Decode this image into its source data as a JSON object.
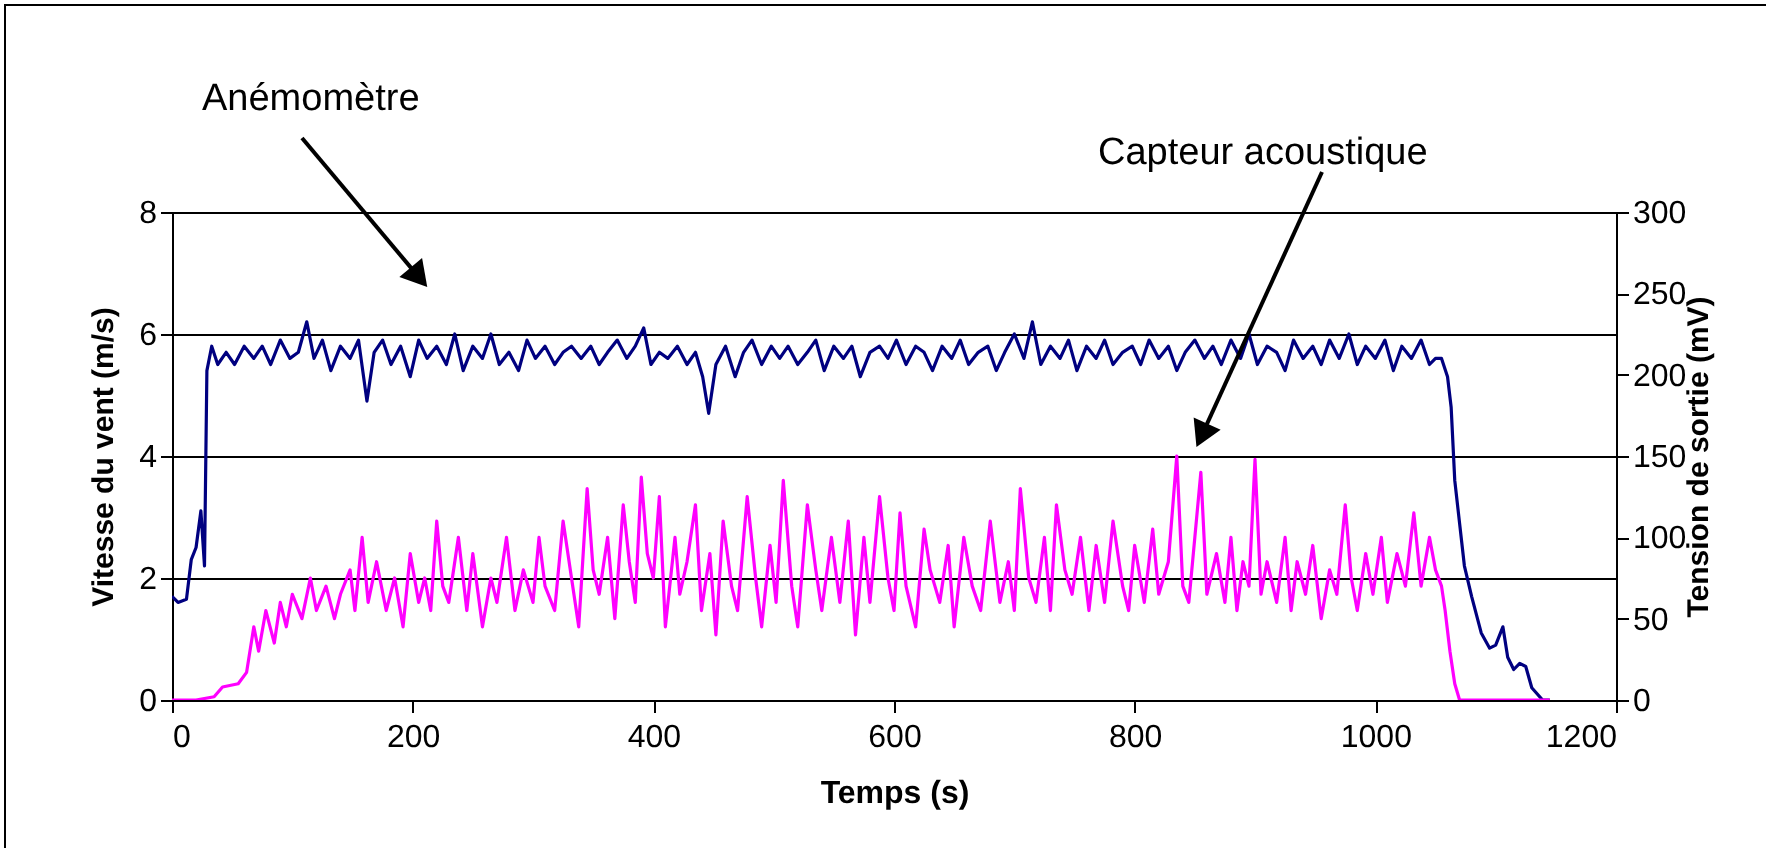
{
  "chart_data": {
    "type": "line",
    "xlabel": "Temps (s)",
    "ylabel": "Vitesse du vent (m/s)",
    "y2label": "Tension de sortie (mV)",
    "xlim": [
      0,
      1200
    ],
    "xticks": [
      0,
      200,
      400,
      600,
      800,
      1000,
      1200
    ],
    "ylim": [
      0,
      8
    ],
    "yticks": [
      0,
      2,
      4,
      6,
      8
    ],
    "y2lim": [
      0,
      300
    ],
    "y2ticks": [
      0,
      50,
      100,
      150,
      200,
      250,
      300
    ],
    "grid": "y",
    "annotations": [
      "Anémomètre",
      "Capteur acoustique"
    ],
    "series": [
      {
        "color": "#000080",
        "x": [
          0,
          5,
          12,
          16,
          20,
          24,
          27,
          29,
          33,
          38,
          45,
          52,
          60,
          68,
          75,
          82,
          90,
          98,
          105,
          112,
          118,
          125,
          132,
          140,
          148,
          155,
          162,
          168,
          175,
          182,
          190,
          198,
          205,
          212,
          220,
          228,
          235,
          242,
          250,
          258,
          265,
          272,
          280,
          288,
          295,
          302,
          310,
          318,
          325,
          332,
          340,
          348,
          355,
          362,
          370,
          378,
          385,
          392,
          398,
          405,
          412,
          420,
          428,
          435,
          441,
          446,
          452,
          460,
          468,
          475,
          482,
          490,
          498,
          505,
          512,
          520,
          528,
          535,
          542,
          550,
          558,
          565,
          572,
          580,
          588,
          595,
          602,
          610,
          618,
          625,
          632,
          640,
          648,
          655,
          662,
          670,
          678,
          685,
          692,
          700,
          708,
          715,
          722,
          730,
          738,
          745,
          752,
          760,
          768,
          775,
          782,
          790,
          798,
          805,
          812,
          820,
          828,
          835,
          842,
          850,
          858,
          865,
          872,
          880,
          888,
          895,
          902,
          910,
          918,
          925,
          932,
          940,
          948,
          955,
          962,
          970,
          978,
          985,
          992,
          1000,
          1008,
          1015,
          1022,
          1030,
          1038,
          1045,
          1050,
          1055,
          1060,
          1063,
          1066,
          1070,
          1074,
          1080,
          1088,
          1095,
          1100,
          1106,
          1110,
          1115,
          1120,
          1125,
          1130,
          1139,
          1145
        ],
        "values": [
          1.7,
          1.6,
          1.65,
          2.3,
          2.5,
          3.1,
          2.2,
          5.4,
          5.8,
          5.5,
          5.7,
          5.5,
          5.8,
          5.6,
          5.8,
          5.5,
          5.9,
          5.6,
          5.7,
          6.2,
          5.6,
          5.9,
          5.4,
          5.8,
          5.6,
          5.9,
          4.9,
          5.7,
          5.9,
          5.5,
          5.8,
          5.3,
          5.9,
          5.6,
          5.8,
          5.5,
          6.0,
          5.4,
          5.8,
          5.6,
          6.0,
          5.5,
          5.7,
          5.4,
          5.9,
          5.6,
          5.8,
          5.5,
          5.7,
          5.8,
          5.6,
          5.8,
          5.5,
          5.7,
          5.9,
          5.6,
          5.8,
          6.1,
          5.5,
          5.7,
          5.6,
          5.8,
          5.5,
          5.7,
          5.3,
          4.7,
          5.5,
          5.8,
          5.3,
          5.7,
          5.9,
          5.5,
          5.8,
          5.6,
          5.8,
          5.5,
          5.7,
          5.9,
          5.4,
          5.8,
          5.6,
          5.8,
          5.3,
          5.7,
          5.8,
          5.6,
          5.9,
          5.5,
          5.8,
          5.7,
          5.4,
          5.8,
          5.6,
          5.9,
          5.5,
          5.7,
          5.8,
          5.4,
          5.7,
          6.0,
          5.6,
          6.2,
          5.5,
          5.8,
          5.6,
          5.9,
          5.4,
          5.8,
          5.6,
          5.9,
          5.5,
          5.7,
          5.8,
          5.5,
          5.9,
          5.6,
          5.8,
          5.4,
          5.7,
          5.9,
          5.6,
          5.8,
          5.5,
          5.9,
          5.6,
          6.0,
          5.5,
          5.8,
          5.7,
          5.4,
          5.9,
          5.6,
          5.8,
          5.5,
          5.9,
          5.6,
          6.0,
          5.5,
          5.8,
          5.6,
          5.9,
          5.4,
          5.8,
          5.6,
          5.9,
          5.5,
          5.6,
          5.6,
          5.3,
          4.8,
          3.6,
          2.9,
          2.2,
          1.7,
          1.1,
          0.85,
          0.9,
          1.2,
          0.7,
          0.5,
          0.6,
          0.55,
          0.2,
          0,
          0
        ]
      },
      {
        "color": "#ff00ff",
        "axis": "y2",
        "x": [
          0,
          20,
          35,
          42,
          55,
          62,
          68,
          72,
          78,
          85,
          90,
          95,
          100,
          108,
          115,
          120,
          128,
          135,
          140,
          148,
          152,
          158,
          163,
          170,
          178,
          185,
          192,
          198,
          205,
          210,
          215,
          220,
          225,
          230,
          238,
          245,
          250,
          258,
          265,
          270,
          278,
          285,
          292,
          300,
          305,
          310,
          318,
          325,
          332,
          338,
          345,
          350,
          355,
          362,
          368,
          375,
          380,
          385,
          390,
          395,
          400,
          405,
          410,
          418,
          422,
          428,
          435,
          440,
          447,
          452,
          458,
          465,
          470,
          478,
          485,
          490,
          497,
          502,
          508,
          515,
          520,
          528,
          535,
          540,
          548,
          555,
          562,
          568,
          575,
          580,
          588,
          595,
          600,
          605,
          610,
          618,
          625,
          630,
          638,
          645,
          650,
          658,
          665,
          672,
          680,
          688,
          695,
          700,
          705,
          712,
          718,
          725,
          730,
          735,
          742,
          748,
          755,
          762,
          768,
          775,
          782,
          790,
          795,
          800,
          808,
          815,
          820,
          828,
          835,
          840,
          845,
          850,
          855,
          860,
          868,
          875,
          880,
          885,
          890,
          895,
          900,
          905,
          910,
          918,
          925,
          930,
          935,
          942,
          948,
          955,
          962,
          968,
          975,
          980,
          985,
          992,
          998,
          1005,
          1010,
          1018,
          1025,
          1032,
          1038,
          1045,
          1050,
          1055,
          1058,
          1062,
          1066,
          1070,
          1145
        ],
        "values": [
          0,
          0,
          2,
          8,
          10,
          17,
          45,
          30,
          55,
          35,
          60,
          45,
          65,
          50,
          75,
          55,
          70,
          50,
          65,
          80,
          55,
          100,
          60,
          85,
          55,
          75,
          45,
          90,
          60,
          75,
          55,
          110,
          70,
          60,
          100,
          55,
          90,
          45,
          75,
          60,
          100,
          55,
          80,
          60,
          100,
          70,
          55,
          110,
          75,
          45,
          130,
          80,
          65,
          100,
          50,
          120,
          85,
          60,
          137,
          90,
          75,
          125,
          45,
          100,
          65,
          85,
          120,
          55,
          90,
          40,
          110,
          70,
          55,
          125,
          75,
          45,
          95,
          60,
          135,
          70,
          45,
          120,
          80,
          55,
          100,
          60,
          110,
          40,
          100,
          60,
          125,
          75,
          55,
          115,
          70,
          45,
          105,
          80,
          60,
          95,
          45,
          100,
          70,
          55,
          110,
          60,
          85,
          55,
          130,
          75,
          60,
          100,
          55,
          120,
          80,
          65,
          100,
          55,
          95,
          60,
          110,
          70,
          55,
          95,
          60,
          105,
          65,
          85,
          150,
          70,
          60,
          100,
          140,
          65,
          90,
          60,
          100,
          55,
          85,
          70,
          148,
          65,
          85,
          60,
          100,
          55,
          85,
          65,
          95,
          50,
          80,
          65,
          120,
          75,
          55,
          90,
          65,
          100,
          60,
          90,
          70,
          115,
          70,
          100,
          80,
          70,
          55,
          30,
          10,
          0,
          0
        ]
      }
    ]
  }
}
